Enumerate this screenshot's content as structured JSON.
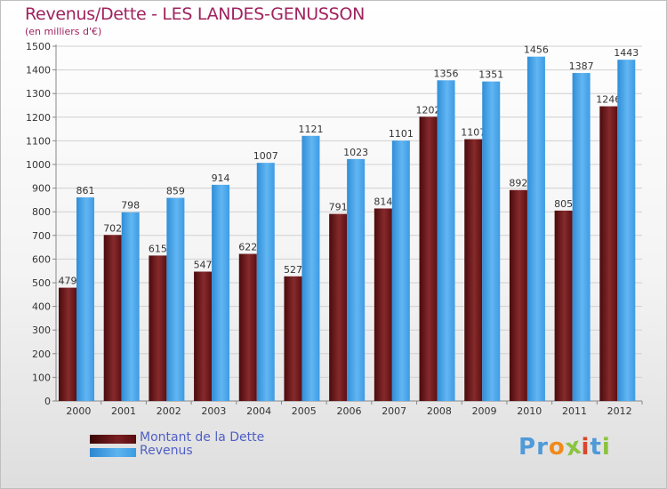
{
  "header": {
    "title": "Revenus/Dette - LES LANDES-GENUSSON",
    "subtitle": "(en milliers d'€)"
  },
  "colors": {
    "title": "#a0225e",
    "dette": "#7a1f22",
    "revenus": "#3f9ee6",
    "legend_text": "#4f5fc4"
  },
  "logo": {
    "text": "Proxiti",
    "letters": [
      "P",
      "r",
      "o",
      "x",
      "i",
      "t",
      "i"
    ],
    "letter_colors": [
      "#4f9ad8",
      "#4f9ad8",
      "#f08a1c",
      "#8bc33f",
      "#d9462b",
      "#4f9ad8",
      "#8bc33f"
    ]
  },
  "chart_data": {
    "type": "bar",
    "title": "Revenus/Dette - LES LANDES-GENUSSON",
    "subtitle": "(en milliers d'€)",
    "xlabel": "",
    "ylabel": "",
    "categories": [
      "2000",
      "2001",
      "2002",
      "2003",
      "2004",
      "2005",
      "2006",
      "2007",
      "2008",
      "2009",
      "2010",
      "2011",
      "2012"
    ],
    "series": [
      {
        "name": "Montant de la Dette",
        "color": "#7a1f22",
        "values": [
          479,
          702,
          615,
          547,
          622,
          527,
          791,
          814,
          1202,
          1107,
          892,
          805,
          1246
        ]
      },
      {
        "name": "Revenus",
        "color": "#3f9ee6",
        "values": [
          861,
          798,
          859,
          914,
          1007,
          1121,
          1023,
          1101,
          1356,
          1351,
          1456,
          1387,
          1443
        ]
      }
    ],
    "ylim": [
      0,
      1500
    ],
    "yticks": [
      0,
      100,
      200,
      300,
      400,
      500,
      600,
      700,
      800,
      900,
      1000,
      1100,
      1200,
      1300,
      1400,
      1500
    ],
    "grid": true,
    "legend": "bottom-left"
  }
}
